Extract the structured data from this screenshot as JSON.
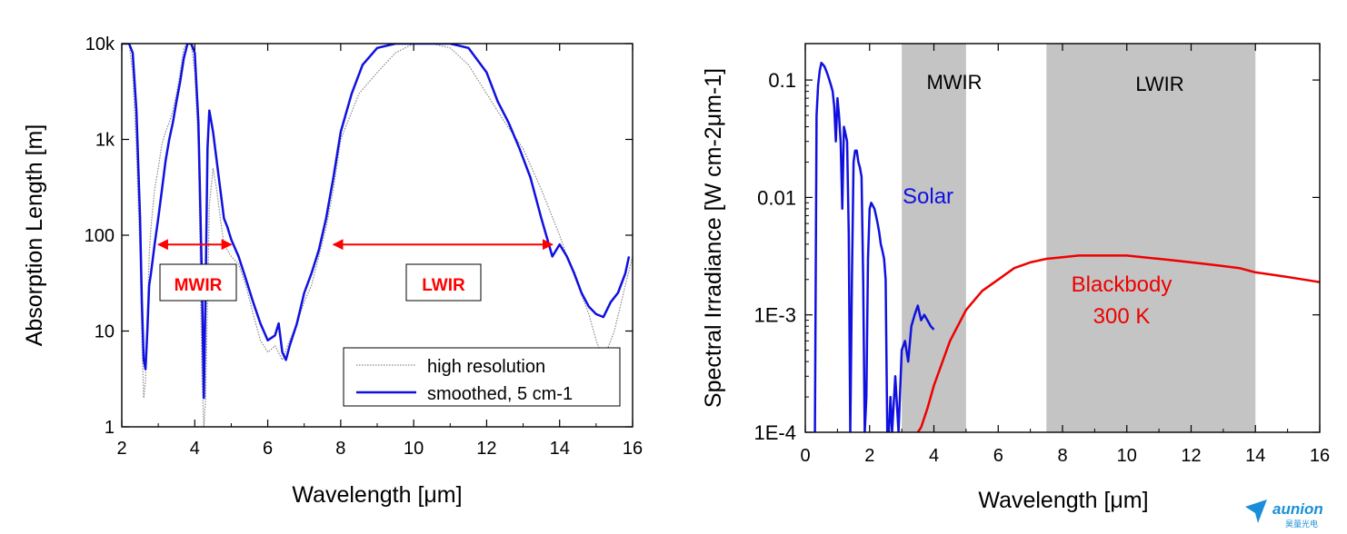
{
  "chart_data": [
    {
      "type": "line",
      "xlabel": "Wavelength [μm]",
      "ylabel": "Absorption Length [m]",
      "xlim": [
        2,
        16
      ],
      "ylim": [
        1,
        10000
      ],
      "y_scale": "log",
      "x_ticks": [
        "2",
        "4",
        "6",
        "8",
        "10",
        "12",
        "14",
        "16"
      ],
      "y_ticks": [
        "1",
        "10",
        "100",
        "1k",
        "10k"
      ],
      "legend_position": "bottom-right",
      "series": [
        {
          "name": "high resolution",
          "color": "#8a8a8a",
          "style": "dotted",
          "x": [
            2.0,
            2.1,
            2.2,
            2.3,
            2.4,
            2.5,
            2.55,
            2.6,
            2.65,
            2.7,
            2.75,
            2.8,
            2.9,
            3.0,
            3.1,
            3.2,
            3.3,
            3.4,
            3.5,
            3.6,
            3.7,
            3.8,
            3.9,
            4.0,
            4.1,
            4.2,
            4.25,
            4.3,
            4.35,
            4.4,
            4.5,
            4.6,
            4.7,
            4.8,
            5.0,
            5.2,
            5.4,
            5.6,
            5.8,
            6.0,
            6.2,
            6.4,
            6.6,
            6.8,
            7.0,
            7.2,
            7.4,
            7.6,
            7.8,
            8.0,
            8.5,
            9.0,
            9.5,
            10.0,
            10.5,
            11.0,
            11.5,
            12.0,
            12.5,
            13.0,
            13.5,
            14.0,
            14.2,
            14.5,
            14.8,
            15.0,
            15.2,
            15.5,
            15.8,
            16.0
          ],
          "values": [
            10000,
            10000,
            10000,
            5000,
            800,
            60,
            8,
            2,
            3,
            15,
            60,
            120,
            300,
            500,
            900,
            1200,
            1500,
            2000,
            3000,
            5000,
            9000,
            10000,
            10000,
            5000,
            800,
            3,
            1,
            2,
            20,
            200,
            500,
            300,
            150,
            80,
            60,
            50,
            30,
            15,
            8,
            6,
            7,
            5,
            8,
            12,
            20,
            30,
            60,
            120,
            300,
            1000,
            3000,
            5000,
            8000,
            10000,
            10000,
            9000,
            6000,
            3000,
            1500,
            800,
            300,
            100,
            60,
            30,
            15,
            8,
            5,
            10,
            30,
            60
          ]
        },
        {
          "name": "smoothed, 5 cm-1",
          "color": "#1010e0",
          "style": "solid",
          "x": [
            2.0,
            2.1,
            2.2,
            2.3,
            2.4,
            2.5,
            2.55,
            2.6,
            2.65,
            2.7,
            2.75,
            2.8,
            2.9,
            3.0,
            3.1,
            3.2,
            3.3,
            3.4,
            3.5,
            3.6,
            3.7,
            3.8,
            3.9,
            4.0,
            4.1,
            4.2,
            4.25,
            4.3,
            4.35,
            4.4,
            4.5,
            4.6,
            4.7,
            4.8,
            4.9,
            5.0,
            5.2,
            5.4,
            5.6,
            5.8,
            6.0,
            6.2,
            6.3,
            6.4,
            6.5,
            6.6,
            6.8,
            7.0,
            7.2,
            7.4,
            7.6,
            7.8,
            8.0,
            8.3,
            8.6,
            9.0,
            9.5,
            10.0,
            10.5,
            11.0,
            11.5,
            12.0,
            12.3,
            12.6,
            12.9,
            13.2,
            13.5,
            13.8,
            14.0,
            14.2,
            14.4,
            14.6,
            14.8,
            15.0,
            15.2,
            15.4,
            15.6,
            15.8,
            15.9
          ],
          "values": [
            10000,
            10000,
            10000,
            8000,
            2000,
            150,
            20,
            5,
            4,
            10,
            30,
            40,
            80,
            150,
            300,
            600,
            1000,
            1500,
            2500,
            4000,
            7000,
            10000,
            10000,
            8000,
            1500,
            30,
            2,
            30,
            800,
            2000,
            1200,
            600,
            300,
            150,
            120,
            90,
            60,
            35,
            20,
            12,
            8,
            9,
            12,
            6,
            5,
            7,
            12,
            25,
            40,
            70,
            150,
            400,
            1200,
            3000,
            6000,
            9000,
            10000,
            10000,
            10000,
            10000,
            9000,
            5000,
            2500,
            1500,
            800,
            400,
            150,
            60,
            80,
            60,
            40,
            25,
            18,
            15,
            14,
            20,
            25,
            40,
            60
          ]
        }
      ],
      "annotations": [
        {
          "text": "MWIR",
          "color": "#ff0000",
          "x_range": [
            3,
            5
          ],
          "y": 80
        },
        {
          "text": "LWIR",
          "color": "#ff0000",
          "x_range": [
            7.8,
            13.8
          ],
          "y": 80
        }
      ]
    },
    {
      "type": "line",
      "xlabel": "Wavelength [μm]",
      "ylabel": "Spectral Irradiance [W cm-2μm-1]",
      "xlim": [
        0,
        16
      ],
      "ylim": [
        0.0001,
        0.2
      ],
      "y_scale": "log",
      "x_ticks": [
        "0",
        "2",
        "4",
        "6",
        "8",
        "10",
        "12",
        "14",
        "16"
      ],
      "y_ticks": [
        "1E-4",
        "1E-3",
        "0.01",
        "0.1"
      ],
      "shaded_bands": [
        {
          "label": "MWIR",
          "x_range": [
            3,
            5
          ],
          "color": "#c4c4c4"
        },
        {
          "label": "LWIR",
          "x_range": [
            7.5,
            14
          ],
          "color": "#c4c4c4"
        }
      ],
      "series": [
        {
          "name": "Solar",
          "color": "#1010e0",
          "x": [
            0.3,
            0.35,
            0.4,
            0.45,
            0.5,
            0.55,
            0.6,
            0.65,
            0.7,
            0.75,
            0.8,
            0.85,
            0.9,
            0.95,
            1.0,
            1.05,
            1.1,
            1.15,
            1.2,
            1.25,
            1.3,
            1.35,
            1.4,
            1.45,
            1.5,
            1.55,
            1.6,
            1.65,
            1.7,
            1.75,
            1.8,
            1.85,
            1.9,
            1.95,
            2.0,
            2.05,
            2.1,
            2.15,
            2.2,
            2.25,
            2.3,
            2.35,
            2.4,
            2.45,
            2.5,
            2.55,
            2.6,
            2.65,
            2.7,
            2.8,
            2.9,
            3.0,
            3.1,
            3.2,
            3.3,
            3.4,
            3.5,
            3.6,
            3.7,
            3.8,
            3.9,
            4.0
          ],
          "values": [
            0.0001,
            0.05,
            0.09,
            0.12,
            0.14,
            0.135,
            0.13,
            0.12,
            0.11,
            0.1,
            0.09,
            0.08,
            0.06,
            0.03,
            0.07,
            0.05,
            0.03,
            0.008,
            0.04,
            0.035,
            0.03,
            0.005,
            0.0001,
            0.002,
            0.02,
            0.025,
            0.025,
            0.02,
            0.018,
            0.015,
            0.002,
            0.0001,
            0.0002,
            0.003,
            0.008,
            0.009,
            0.0085,
            0.008,
            0.007,
            0.006,
            0.005,
            0.004,
            0.0035,
            0.003,
            0.002,
            0.0001,
            0.0001,
            0.0002,
            0.0001,
            0.0003,
            0.0001,
            0.0005,
            0.0006,
            0.0004,
            0.0008,
            0.001,
            0.0012,
            0.0009,
            0.001,
            0.0009,
            0.0008,
            0.00075
          ]
        },
        {
          "name": "Blackbody 300 K",
          "color": "#ee0000",
          "x": [
            3.5,
            3.6,
            3.8,
            4.0,
            4.5,
            5.0,
            5.5,
            6.0,
            6.5,
            7.0,
            7.5,
            8.0,
            8.5,
            9.0,
            9.5,
            10.0,
            10.5,
            11.0,
            11.5,
            12.0,
            12.5,
            13.0,
            13.5,
            14.0,
            14.5,
            15.0,
            15.5,
            16.0
          ],
          "values": [
            0.0001,
            0.00011,
            0.00016,
            0.00025,
            0.0006,
            0.0011,
            0.0016,
            0.002,
            0.0025,
            0.0028,
            0.003,
            0.0031,
            0.0032,
            0.0032,
            0.0032,
            0.0032,
            0.0031,
            0.003,
            0.0029,
            0.0028,
            0.0027,
            0.0026,
            0.0025,
            0.0023,
            0.0022,
            0.0021,
            0.002,
            0.0019
          ]
        }
      ],
      "annotations": [
        {
          "text": "Solar",
          "color": "#1010e0",
          "x": 2.6,
          "y": 0.012
        },
        {
          "text": "Blackbody",
          "color": "#ee0000",
          "x": 11.5,
          "y": 0.0022
        },
        {
          "text": "300 K",
          "color": "#ee0000",
          "x": 11.5,
          "y": 0.0012
        }
      ]
    }
  ],
  "watermark": {
    "brand": "aunion",
    "subtitle": "昊量光电",
    "color": "#1a8fd8"
  }
}
